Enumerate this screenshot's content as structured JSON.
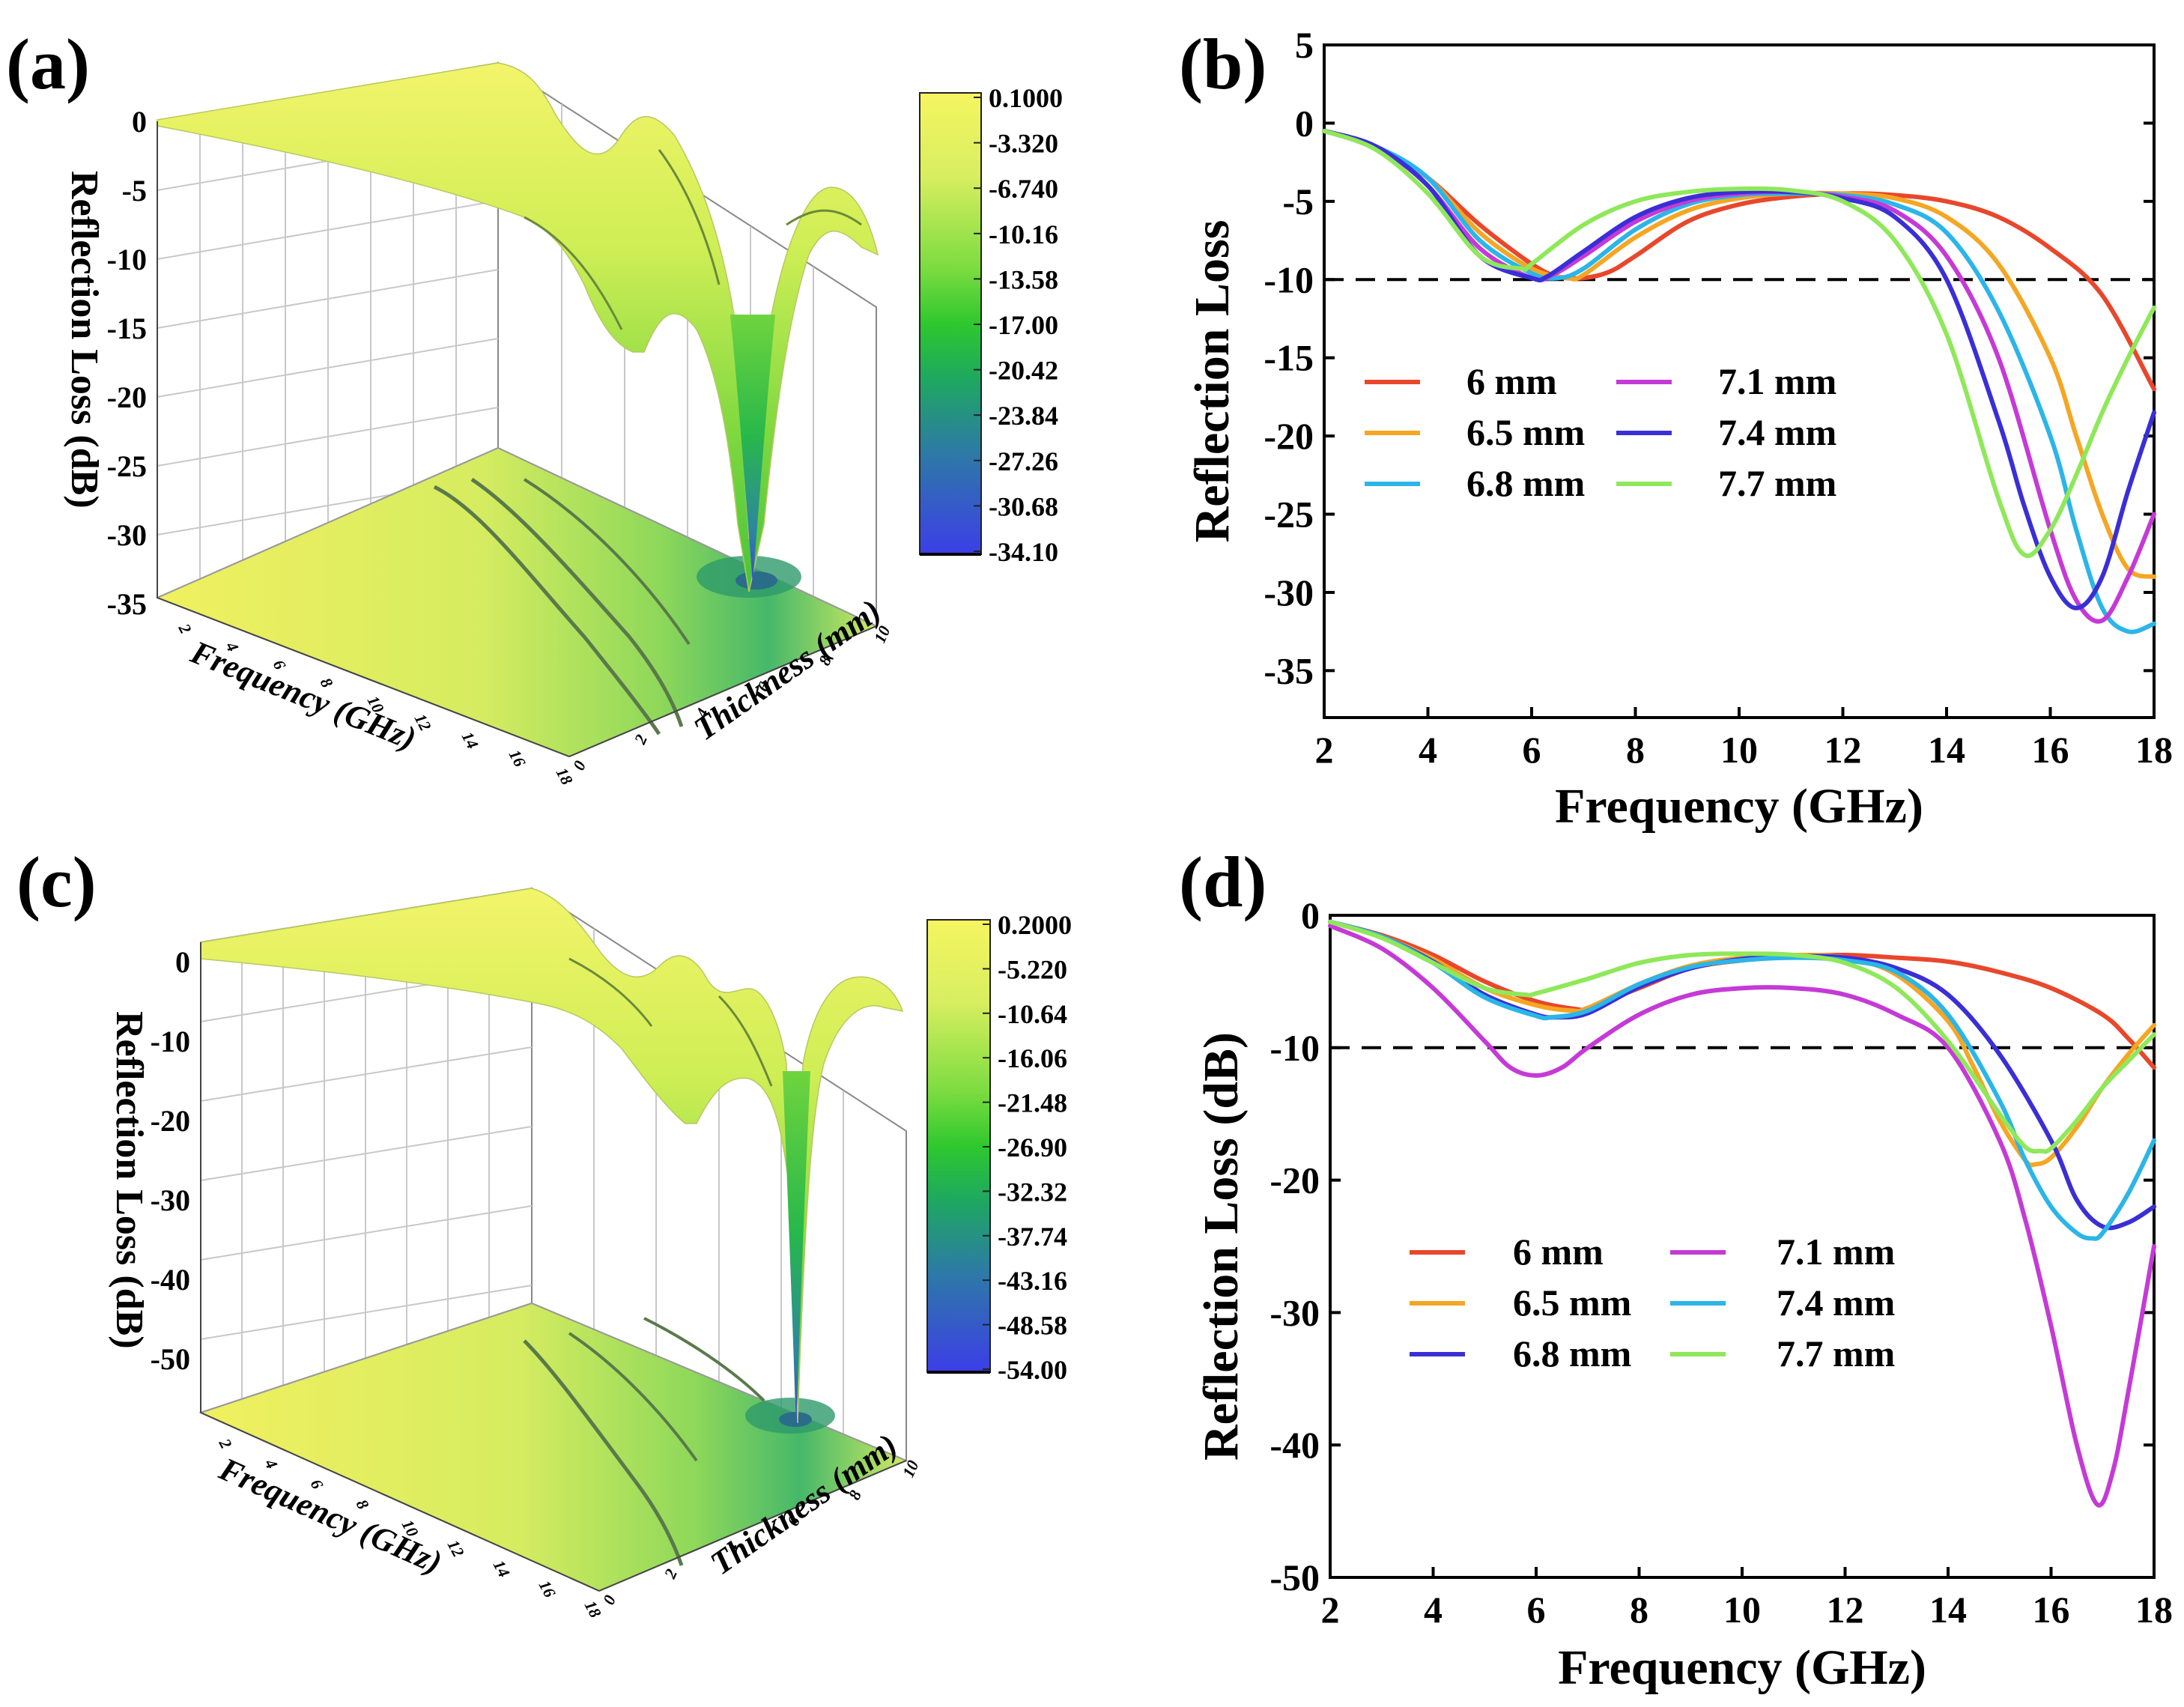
{
  "panels": {
    "a": {
      "label": "(a)"
    },
    "b": {
      "label": "(b)"
    },
    "c": {
      "label": "(c)"
    },
    "d": {
      "label": "(d)"
    }
  },
  "colors": {
    "6mm_b": "#e8472b",
    "6.5mm_b": "#f5a623",
    "6.8mm_b": "#2bb5e8",
    "7.1mm_b": "#c53ad6",
    "7.4mm_b": "#3a2fd6",
    "7.7mm_b": "#8fe85a",
    "6mm_d": "#e8472b",
    "6.5mm_d": "#f5a623",
    "6.8mm_d": "#3a2fd6",
    "7.1mm_d": "#c53ad6",
    "7.4mm_d": "#2bb5e8",
    "7.7mm_d": "#8fe85a",
    "surface_high": "#f2f25a",
    "surface_mid": "#32c832",
    "surface_low": "#3a3ae8"
  },
  "chart_data": [
    {
      "type": "surface3d",
      "panel": "a",
      "zlabel": "Reflection Loss (dB)",
      "xlabel": "Frequency (GHz)",
      "ylabel": "Thickness (mm)",
      "x_ticks": [
        "2",
        "4",
        "6",
        "8",
        "10",
        "12",
        "14",
        "16",
        "18"
      ],
      "y_ticks": [
        "0",
        "2",
        "4",
        "6",
        "8",
        "10"
      ],
      "z_ticks": [
        "0",
        "-5",
        "-10",
        "-15",
        "-20",
        "-25",
        "-30",
        "-35"
      ],
      "zlim": [
        -35,
        0
      ],
      "colorbar_ticks": [
        "0.1000",
        "-3.320",
        "-6.740",
        "-10.16",
        "-13.58",
        "-17.00",
        "-20.42",
        "-23.84",
        "-27.26",
        "-30.68",
        "-34.10"
      ]
    },
    {
      "type": "line",
      "panel": "b",
      "xlabel": "Frequency (GHz)",
      "ylabel": "Reflection Loss",
      "xlim": [
        2,
        18
      ],
      "ylim": [
        -38,
        5
      ],
      "x_ticks": [
        "2",
        "4",
        "6",
        "8",
        "10",
        "12",
        "14",
        "16",
        "18"
      ],
      "y_ticks": [
        "5",
        "0",
        "-5",
        "-10",
        "-15",
        "-20",
        "-25",
        "-30",
        "-35"
      ],
      "y_tick_values": [
        5,
        0,
        -5,
        -10,
        -15,
        -20,
        -25,
        -30,
        -35
      ],
      "reference_line": -10,
      "legend": {
        "placement": "center-left",
        "entries": [
          "6 mm",
          "7.1 mm",
          "6.5 mm",
          "7.4 mm",
          "6.8 mm",
          "7.7 mm"
        ]
      },
      "series": [
        {
          "name": "6 mm",
          "color_key": "6mm_b",
          "x": [
            2,
            3,
            4,
            5,
            6,
            6.5,
            7,
            7.5,
            8,
            9,
            10,
            11,
            12,
            13,
            14,
            15,
            16,
            17,
            18
          ],
          "y": [
            -0.5,
            -1.5,
            -3.5,
            -6.5,
            -9,
            -9.8,
            -9.9,
            -9.5,
            -8.5,
            -6.3,
            -5.2,
            -4.7,
            -4.5,
            -4.6,
            -5,
            -6,
            -8,
            -11,
            -17
          ]
        },
        {
          "name": "6.5 mm",
          "color_key": "6.5mm_b",
          "x": [
            2,
            3,
            4,
            5,
            6,
            6.7,
            7,
            8,
            9,
            10,
            11,
            12,
            13,
            14,
            15,
            16,
            16.5,
            17,
            17.5,
            18
          ],
          "y": [
            -0.5,
            -1.5,
            -3.5,
            -7,
            -9.3,
            -9.9,
            -9.7,
            -7.3,
            -5.6,
            -4.8,
            -4.5,
            -4.5,
            -4.8,
            -6,
            -9,
            -15,
            -20,
            -25,
            -28.5,
            -29
          ]
        },
        {
          "name": "6.8 mm",
          "color_key": "6.8mm_b",
          "x": [
            2,
            3,
            4,
            5,
            6,
            6.5,
            7,
            8,
            9,
            10,
            11,
            12,
            13,
            14,
            15,
            16,
            16.5,
            17,
            17.5,
            18
          ],
          "y": [
            -0.5,
            -1.5,
            -3.5,
            -7.5,
            -9.6,
            -9.9,
            -9.3,
            -6.8,
            -5.2,
            -4.6,
            -4.5,
            -4.6,
            -5.2,
            -7,
            -12,
            -20,
            -26,
            -31,
            -32.5,
            -32
          ]
        },
        {
          "name": "7.1 mm",
          "color_key": "7.1mm_b",
          "x": [
            2,
            3,
            4,
            5,
            6,
            6.4,
            7,
            8,
            9,
            10,
            11,
            12,
            13,
            14,
            15,
            16,
            16.5,
            17,
            17.5,
            18
          ],
          "y": [
            -0.5,
            -1.5,
            -4,
            -8,
            -9.9,
            -9.7,
            -8.5,
            -6.3,
            -5,
            -4.5,
            -4.4,
            -4.7,
            -5.6,
            -8.5,
            -15,
            -26,
            -30.5,
            -31.8,
            -29,
            -25
          ]
        },
        {
          "name": "7.4 mm",
          "color_key": "7.4mm_b",
          "x": [
            2,
            3,
            4,
            5,
            6,
            6.3,
            7,
            8,
            9,
            10,
            11,
            12,
            13,
            14,
            15,
            15.5,
            16,
            16.5,
            17,
            17.5,
            18
          ],
          "y": [
            -0.5,
            -1.5,
            -4,
            -8.5,
            -9.9,
            -9.8,
            -8.2,
            -6,
            -4.8,
            -4.4,
            -4.4,
            -4.8,
            -6,
            -10,
            -19,
            -24.5,
            -29,
            -31,
            -29,
            -23.5,
            -18.5
          ]
        },
        {
          "name": "7.7 mm",
          "color_key": "7.7mm_b",
          "x": [
            2,
            3,
            4,
            5,
            5.8,
            6,
            7,
            8,
            9,
            10,
            11,
            12,
            13,
            14,
            15,
            15.5,
            16,
            16.5,
            17,
            17.5,
            18
          ],
          "y": [
            -0.5,
            -1.7,
            -4.5,
            -8.5,
            -9.3,
            -9,
            -6.5,
            -5,
            -4.4,
            -4.2,
            -4.3,
            -5,
            -7.5,
            -13.5,
            -24,
            -27.6,
            -26,
            -22.5,
            -18.5,
            -15,
            -11.8
          ]
        }
      ]
    },
    {
      "type": "surface3d",
      "panel": "c",
      "zlabel": "Reflection Loss (dB)",
      "xlabel": "Frequency (GHz)",
      "ylabel": "Thickness (mm)",
      "x_ticks": [
        "2",
        "4",
        "6",
        "8",
        "10",
        "12",
        "14",
        "16",
        "18"
      ],
      "y_ticks": [
        "0",
        "2",
        "4",
        "6",
        "8",
        "10"
      ],
      "z_ticks": [
        "0",
        "-10",
        "-20",
        "-30",
        "-40",
        "-50"
      ],
      "zlim": [
        -54,
        2
      ],
      "colorbar_ticks": [
        "0.2000",
        "-5.220",
        "-10.64",
        "-16.06",
        "-21.48",
        "-26.90",
        "-32.32",
        "-37.74",
        "-43.16",
        "-48.58",
        "-54.00"
      ]
    },
    {
      "type": "line",
      "panel": "d",
      "xlabel": "Frequency (GHz)",
      "ylabel": "Reflection Loss (dB)",
      "xlim": [
        2,
        18
      ],
      "ylim": [
        -50,
        0
      ],
      "x_ticks": [
        "2",
        "4",
        "6",
        "8",
        "10",
        "12",
        "14",
        "16",
        "18"
      ],
      "y_ticks": [
        "0",
        "-10",
        "-20",
        "-30",
        "-40",
        "-50"
      ],
      "y_tick_values": [
        0,
        -10,
        -20,
        -30,
        -40,
        -50
      ],
      "reference_line": -10,
      "legend": {
        "placement": "center-left",
        "entries": [
          "6 mm",
          "7.1 mm",
          "6.5 mm",
          "7.4 mm",
          "6.8 mm",
          "7.7 mm"
        ]
      },
      "series": [
        {
          "name": "6 mm",
          "color_key": "6mm_d",
          "x": [
            2,
            3,
            4,
            5,
            6,
            6.8,
            7,
            8,
            9,
            10,
            11,
            12,
            13,
            14,
            15,
            16,
            17,
            17.5,
            18
          ],
          "y": [
            -0.5,
            -1.5,
            -3,
            -5,
            -6.5,
            -7.1,
            -7,
            -5.5,
            -4,
            -3.4,
            -3.1,
            -3,
            -3.2,
            -3.5,
            -4.3,
            -5.5,
            -7.5,
            -9.3,
            -11.5
          ]
        },
        {
          "name": "6.5 mm",
          "color_key": "6.5mm_d",
          "x": [
            2,
            3,
            4,
            5,
            6,
            6.7,
            7,
            8,
            9,
            10,
            11,
            12,
            13,
            14,
            14.5,
            15,
            15.5,
            15.7,
            16,
            16.5,
            17,
            17.5,
            18
          ],
          "y": [
            -0.5,
            -1.6,
            -3.3,
            -5.5,
            -6.8,
            -7.2,
            -7,
            -5.2,
            -3.8,
            -3.2,
            -3,
            -3.2,
            -4.5,
            -8,
            -11.5,
            -15.5,
            -18.5,
            -18.8,
            -18.3,
            -16,
            -13,
            -10.5,
            -8.3
          ]
        },
        {
          "name": "6.8 mm",
          "color_key": "6.8mm_d",
          "x": [
            2,
            3,
            4,
            5,
            6,
            6.4,
            7,
            8,
            9,
            10,
            11,
            12,
            13,
            14,
            15,
            16,
            16.5,
            17,
            17.5,
            18
          ],
          "y": [
            -0.5,
            -1.6,
            -3.5,
            -6,
            -7.5,
            -7.7,
            -7.4,
            -5.4,
            -4,
            -3.3,
            -3.1,
            -3.2,
            -4,
            -6,
            -10.5,
            -17,
            -21.5,
            -23.5,
            -23.2,
            -22
          ]
        },
        {
          "name": "7.1 mm",
          "color_key": "7.1mm_d",
          "x": [
            2,
            3,
            4,
            5,
            5.5,
            6,
            6.5,
            7,
            8,
            9,
            10,
            11,
            12,
            13,
            14,
            15,
            15.5,
            16,
            16.5,
            16.9,
            17.2,
            17.5,
            18
          ],
          "y": [
            -0.8,
            -2.5,
            -5.5,
            -9.5,
            -11.5,
            -12.1,
            -11.5,
            -10,
            -7.5,
            -6,
            -5.5,
            -5.5,
            -6,
            -7.5,
            -10,
            -17,
            -23,
            -31,
            -40,
            -44.5,
            -42,
            -36,
            -25
          ]
        },
        {
          "name": "7.4 mm",
          "color_key": "7.4mm_d",
          "x": [
            2,
            3,
            4,
            5,
            6,
            6.3,
            7,
            8,
            9,
            10,
            11,
            12,
            13,
            14,
            15,
            15.5,
            16,
            16.5,
            16.8,
            17,
            17.5,
            18
          ],
          "y": [
            -0.5,
            -1.6,
            -3.6,
            -6.2,
            -7.6,
            -7.7,
            -7.2,
            -5.2,
            -3.9,
            -3.4,
            -3.2,
            -3.4,
            -4.3,
            -7.5,
            -14,
            -18.5,
            -22,
            -24,
            -24.4,
            -24,
            -21,
            -17
          ]
        },
        {
          "name": "7.7 mm",
          "color_key": "7.7mm_d",
          "x": [
            2,
            3,
            4,
            5,
            5.8,
            6,
            7,
            8,
            9,
            10,
            11,
            12,
            13,
            14,
            15,
            15.5,
            15.8,
            16,
            16.5,
            17,
            17.5,
            18
          ],
          "y": [
            -0.5,
            -1.7,
            -3.6,
            -5.5,
            -6,
            -5.9,
            -4.8,
            -3.6,
            -3,
            -2.9,
            -3,
            -3.6,
            -5.5,
            -9.5,
            -15,
            -17.5,
            -17.8,
            -17.6,
            -15.5,
            -13,
            -11,
            -9
          ]
        }
      ]
    }
  ]
}
